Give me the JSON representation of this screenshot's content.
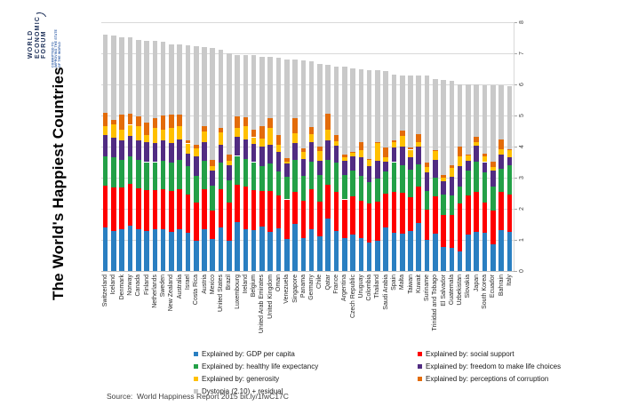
{
  "title": "The World's Happiest Countries",
  "source": "Source:  World Happiness Report 2015 bit.ly/1fwC17C",
  "branding": {
    "logo_lines": [
      "WORLD",
      "ECONOMIC",
      "FORUM"
    ],
    "tagline_lines": [
      "COMMITTED TO",
      "IMPROVING THE STATE",
      "OF THE WORLD"
    ],
    "logo_color": "#1B2E57",
    "tagline_color": "#2B5AA5"
  },
  "legend": {
    "columns": [
      [
        "gdp",
        "health",
        "generosity",
        "dystopia"
      ],
      [
        "social",
        "freedom",
        "corruption"
      ]
    ]
  },
  "colors": {
    "gridline": "#D9D9D9",
    "axis": "#BFBFBF",
    "tick": "#A6A6A6",
    "axis_text": "#404040"
  },
  "chart_data": {
    "type": "bar",
    "stacked": true,
    "title": "The World's Happiest Countries",
    "xlabel": "",
    "ylabel": "",
    "ylim": [
      0,
      8
    ],
    "yticks": [
      0,
      1,
      2,
      3,
      4,
      5,
      6,
      7,
      8
    ],
    "grid": true,
    "legend_position": "bottom",
    "categories": [
      "Switzerland",
      "Iceland",
      "Denmark",
      "Norway",
      "Canada",
      "Finland",
      "Netherlands",
      "Sweden",
      "New Zealand",
      "Australia",
      "Israel",
      "Costa Rica",
      "Austria",
      "Mexico",
      "United States",
      "Brazil",
      "Luxembourg",
      "Ireland",
      "Belgium",
      "United Arab Emirates",
      "United Kingdom",
      "Oman",
      "Venezuela",
      "Singapore",
      "Panama",
      "Germany",
      "Chile",
      "Qatar",
      "France",
      "Argentina",
      "Czech Republic",
      "Uruguay",
      "Colombia",
      "Thailand",
      "Saudi Arabia",
      "Spain",
      "Malta",
      "Taiwan",
      "Kuwait",
      "Suriname",
      "Trinidad and Tobago",
      "El Salvador",
      "Guatemala",
      "Uzbekistan",
      "Slovakia",
      "Japan",
      "South Korea",
      "Ecuador",
      "Bahrain",
      "Italy"
    ],
    "series": [
      {
        "key": "gdp",
        "name": "Explained by: GDP per capita",
        "color": "#2A7FC1",
        "values": [
          1.4,
          1.3,
          1.33,
          1.46,
          1.33,
          1.29,
          1.33,
          1.33,
          1.25,
          1.33,
          1.23,
          0.96,
          1.34,
          1.02,
          1.39,
          0.98,
          1.56,
          1.34,
          1.31,
          1.43,
          1.27,
          1.36,
          1.04,
          1.52,
          1.06,
          1.33,
          1.11,
          1.69,
          1.28,
          1.05,
          1.18,
          1.06,
          0.92,
          0.97,
          1.4,
          1.23,
          1.21,
          1.29,
          1.55,
          1.0,
          1.21,
          0.76,
          0.75,
          0.63,
          1.17,
          1.27,
          1.24,
          0.86,
          1.32,
          1.25
        ]
      },
      {
        "key": "social",
        "name": "Explained by: social support",
        "color": "#FE0000",
        "values": [
          1.35,
          1.4,
          1.36,
          1.33,
          1.32,
          1.32,
          1.28,
          1.29,
          1.32,
          1.31,
          1.22,
          1.24,
          1.3,
          0.91,
          1.25,
          1.23,
          1.22,
          1.37,
          1.29,
          1.13,
          1.29,
          1.08,
          1.26,
          1.02,
          1.2,
          1.3,
          1.12,
          1.08,
          1.26,
          1.25,
          1.21,
          1.2,
          1.24,
          1.27,
          1.08,
          1.31,
          1.3,
          1.08,
          1.17,
          0.97,
          1.18,
          1.03,
          1.04,
          1.55,
          1.27,
          1.26,
          0.96,
          1.09,
          1.22,
          1.2
        ]
      },
      {
        "key": "health",
        "name": "Explained by: healthy life expectancy",
        "color": "#23A047",
        "values": [
          0.94,
          0.95,
          0.87,
          0.89,
          0.91,
          0.89,
          0.89,
          0.91,
          0.91,
          0.93,
          0.91,
          0.86,
          0.89,
          0.81,
          0.86,
          0.7,
          0.92,
          0.9,
          0.9,
          0.81,
          0.91,
          0.76,
          0.72,
          1.03,
          0.8,
          0.89,
          0.86,
          0.8,
          0.95,
          0.79,
          0.84,
          0.81,
          0.69,
          0.74,
          0.72,
          0.96,
          0.89,
          0.88,
          0.72,
          0.61,
          0.61,
          0.68,
          0.64,
          0.54,
          0.79,
          0.99,
          0.97,
          0.77,
          0.75,
          0.95
        ]
      },
      {
        "key": "freedom",
        "name": "Explained by: freedom to make life choices",
        "color": "#512C82",
        "values": [
          0.67,
          0.63,
          0.65,
          0.67,
          0.63,
          0.64,
          0.62,
          0.66,
          0.64,
          0.65,
          0.41,
          0.63,
          0.62,
          0.48,
          0.55,
          0.49,
          0.62,
          0.62,
          0.58,
          0.64,
          0.6,
          0.63,
          0.43,
          0.54,
          0.54,
          0.61,
          0.44,
          0.64,
          0.55,
          0.45,
          0.46,
          0.6,
          0.53,
          0.56,
          0.31,
          0.46,
          0.6,
          0.4,
          0.55,
          0.6,
          0.56,
          0.41,
          0.6,
          0.66,
          0.32,
          0.5,
          0.33,
          0.5,
          0.45,
          0.26
        ]
      },
      {
        "key": "generosity",
        "name": "Explained by: generosity",
        "color": "#FFC000",
        "values": [
          0.3,
          0.44,
          0.34,
          0.35,
          0.46,
          0.23,
          0.48,
          0.36,
          0.48,
          0.44,
          0.33,
          0.25,
          0.33,
          0.14,
          0.4,
          0.15,
          0.28,
          0.43,
          0.22,
          0.26,
          0.52,
          0.22,
          0.06,
          0.31,
          0.24,
          0.28,
          0.33,
          0.33,
          0.12,
          0.11,
          0.11,
          0.22,
          0.18,
          0.58,
          0.14,
          0.18,
          0.34,
          0.25,
          0.16,
          0.17,
          0.32,
          0.11,
          0.28,
          0.32,
          0.17,
          0.11,
          0.19,
          0.12,
          0.17,
          0.23
        ]
      },
      {
        "key": "corruption",
        "name": "Explained by: perceptions of corruption",
        "color": "#E36C0A",
        "values": [
          0.42,
          0.14,
          0.48,
          0.37,
          0.33,
          0.41,
          0.32,
          0.44,
          0.43,
          0.36,
          0.09,
          0.11,
          0.19,
          0.21,
          0.16,
          0.18,
          0.38,
          0.29,
          0.23,
          0.39,
          0.32,
          0.33,
          0.11,
          0.49,
          0.09,
          0.22,
          0.13,
          0.52,
          0.21,
          0.08,
          0.03,
          0.25,
          0.05,
          0.03,
          0.33,
          0.06,
          0.18,
          0.08,
          0.26,
          0.14,
          0.01,
          0.09,
          0.08,
          0.3,
          0.03,
          0.18,
          0.08,
          0.18,
          0.31,
          0.03
        ]
      },
      {
        "key": "dystopia",
        "name": "Dystopia (2.10) + residual",
        "color": "#C9C9C9",
        "values": [
          2.52,
          2.7,
          2.49,
          2.45,
          2.45,
          2.62,
          2.47,
          2.37,
          2.26,
          2.27,
          3.08,
          3.18,
          2.53,
          3.6,
          2.51,
          3.26,
          1.97,
          1.99,
          2.41,
          2.24,
          1.97,
          2.47,
          3.19,
          1.89,
          2.85,
          2.12,
          2.68,
          1.56,
          2.21,
          2.84,
          2.68,
          2.34,
          2.86,
          2.31,
          2.44,
          2.12,
          1.78,
          2.32,
          1.88,
          2.79,
          2.27,
          3.06,
          2.73,
          2.0,
          2.24,
          1.68,
          2.21,
          2.46,
          1.74,
          2.03
        ]
      }
    ]
  }
}
